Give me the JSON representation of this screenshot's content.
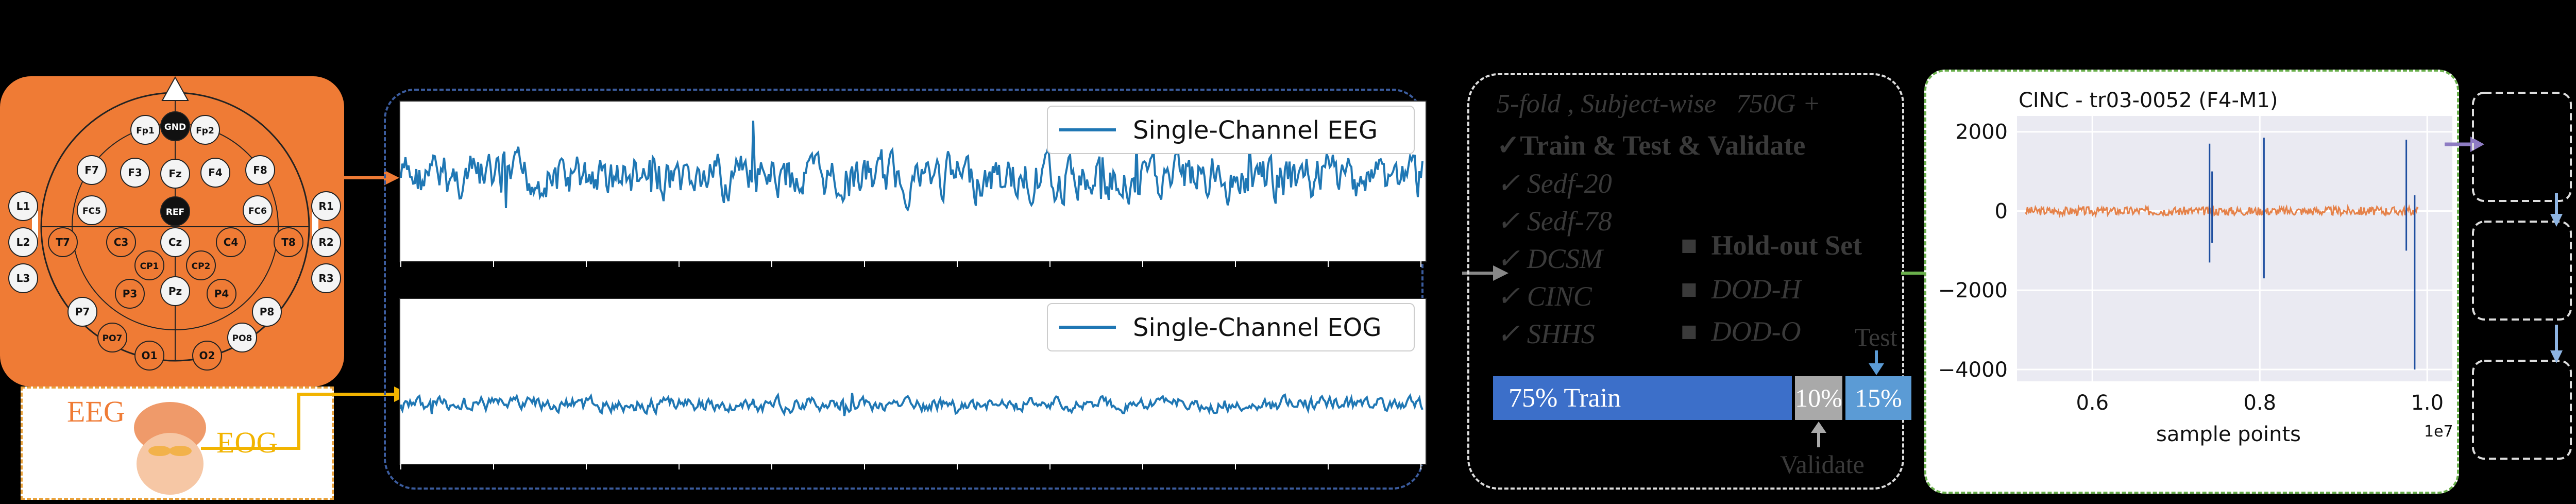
{
  "electrode_cap": {
    "top_marker": "GND",
    "electrodes": [
      {
        "label": "Fp1",
        "kind": "light"
      },
      {
        "label": "GND",
        "kind": "black"
      },
      {
        "label": "Fp2",
        "kind": "light"
      },
      {
        "label": "F7",
        "kind": "light"
      },
      {
        "label": "F3",
        "kind": "light"
      },
      {
        "label": "Fz",
        "kind": "light"
      },
      {
        "label": "F4",
        "kind": "light"
      },
      {
        "label": "F8",
        "kind": "light"
      },
      {
        "label": "REF",
        "kind": "black"
      },
      {
        "label": "FC5",
        "kind": "light"
      },
      {
        "label": "FC6",
        "kind": "light"
      },
      {
        "label": "L1",
        "kind": "light"
      },
      {
        "label": "L2",
        "kind": "light"
      },
      {
        "label": "L3",
        "kind": "light"
      },
      {
        "label": "R1",
        "kind": "light"
      },
      {
        "label": "R2",
        "kind": "light"
      },
      {
        "label": "R3",
        "kind": "light"
      },
      {
        "label": "T7",
        "kind": "orange"
      },
      {
        "label": "C3",
        "kind": "orange"
      },
      {
        "label": "Cz",
        "kind": "light"
      },
      {
        "label": "C4",
        "kind": "orange"
      },
      {
        "label": "T8",
        "kind": "orange"
      },
      {
        "label": "CP1",
        "kind": "orange"
      },
      {
        "label": "CP2",
        "kind": "orange"
      },
      {
        "label": "P7",
        "kind": "light"
      },
      {
        "label": "P3",
        "kind": "orange"
      },
      {
        "label": "Pz",
        "kind": "light"
      },
      {
        "label": "P4",
        "kind": "orange"
      },
      {
        "label": "P8",
        "kind": "light"
      },
      {
        "label": "PO7",
        "kind": "orange"
      },
      {
        "label": "PO8",
        "kind": "light"
      },
      {
        "label": "O1",
        "kind": "orange"
      },
      {
        "label": "O2",
        "kind": "orange"
      }
    ]
  },
  "face": {
    "eeg_label": "EEG",
    "eog_label": "EOG"
  },
  "signals": {
    "eeg_legend": "Single-Channel EEG",
    "eog_legend": "Single-Channel EOG"
  },
  "dataset_panel": {
    "header": "5-fold , Subject-wise   750G +",
    "train_test_validate": "✓Train & Test & Validate",
    "train_datasets": [
      "✓ Sedf-20",
      "✓ Sedf-78",
      "✓ DCSM",
      "✓ CINC",
      "✓ SHHS"
    ],
    "holdout_title": "■  Hold-out Set",
    "holdout_datasets": [
      "■  DOD-H",
      "■  DOD-O"
    ],
    "split_train": "75% Train",
    "split_validate": "10%",
    "split_test": "15%",
    "test_label": "Test",
    "validate_label": "Validate"
  },
  "chart_data": {
    "type": "line",
    "title": "CINC - tr03-0052 (F4-M1)",
    "xlabel": "sample points",
    "x_offset_label": "1e7",
    "x_ticks": [
      "0.6",
      "0.8",
      "1.0"
    ],
    "y_ticks": [
      "2000",
      "0",
      "−2000",
      "−4000"
    ],
    "xlim": [
      0.51,
      1.03
    ],
    "ylim": [
      -4300,
      2400
    ],
    "x_tick_values": [
      0.6,
      0.8,
      1.0
    ],
    "y_tick_values": [
      2000,
      0,
      -2000,
      -4000
    ],
    "grid": true,
    "series": [
      {
        "color": "#e5824a",
        "x_start": 0.52,
        "x_end": 0.99,
        "baseline": 0,
        "spikes": [
          {
            "x": 0.74,
            "min": -1300,
            "max": 1700
          },
          {
            "x": 0.743,
            "min": -800,
            "max": 1000
          },
          {
            "x": 0.805,
            "min": -1700,
            "max": 1850
          },
          {
            "x": 0.975,
            "min": -1000,
            "max": 1800
          },
          {
            "x": 0.985,
            "min": -4000,
            "max": 400
          }
        ]
      }
    ]
  },
  "colors": {
    "orange": "#ef7b35",
    "eeg_blue": "#1f77b4",
    "train_blue": "#3c6fc9",
    "split_gray": "#a9a9a9",
    "test_blue": "#5b9bd5",
    "green": "#6ab04c",
    "purple": "#8e7cc3",
    "dataset_gray": "#3a3a3a"
  }
}
